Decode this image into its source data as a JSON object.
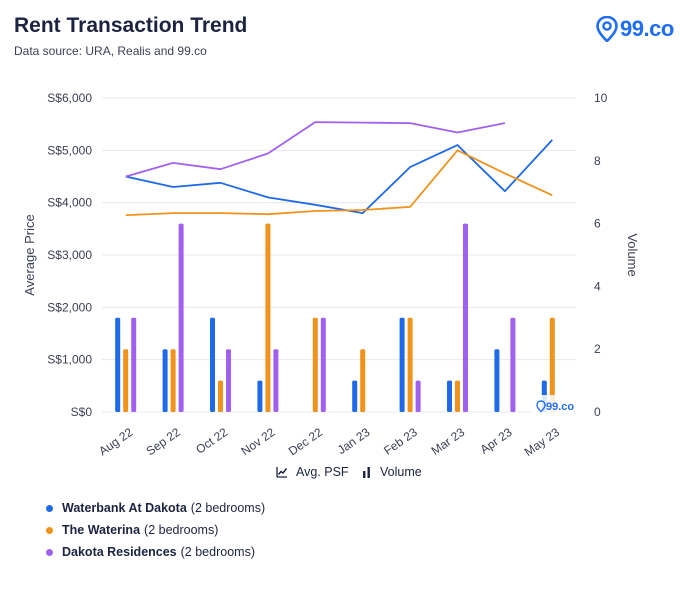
{
  "header": {
    "title": "Rent Transaction Trend",
    "subtitle": "Data source: URA, Realis and 99.co",
    "brand": "99.co"
  },
  "watermark": "99.co",
  "controls": {
    "avg_psf": "Avg. PSF",
    "volume": "Volume"
  },
  "legend": [
    {
      "name": "Waterbank At Dakota",
      "detail": "(2 bedrooms)",
      "color": "#1f6ae8"
    },
    {
      "name": "The Waterina",
      "detail": "(2 bedrooms)",
      "color": "#f0931c"
    },
    {
      "name": "Dakota Residences",
      "detail": "(2 bedrooms)",
      "color": "#a161ee"
    }
  ],
  "chart_data": {
    "type": "bar+line",
    "categories": [
      "Aug 22",
      "Sep 22",
      "Oct 22",
      "Nov 22",
      "Dec 22",
      "Jan 23",
      "Feb 23",
      "Mar 23",
      "Apr 23",
      "May 23"
    ],
    "ylabel": "Average Price",
    "y2label": "Volume",
    "ylim": [
      0,
      6000
    ],
    "y2lim": [
      0,
      10
    ],
    "yticks": [
      "S$0",
      "S$1,000",
      "S$2,000",
      "S$3,000",
      "S$4,000",
      "S$5,000",
      "S$6,000"
    ],
    "y2ticks": [
      "0",
      "2",
      "4",
      "6",
      "8",
      "10"
    ],
    "line_series": [
      {
        "name": "Waterbank At Dakota",
        "color": "#1f6ae8",
        "values": [
          4500,
          4300,
          4380,
          4100,
          3960,
          3800,
          4680,
          5100,
          4220,
          5200
        ]
      },
      {
        "name": "The Waterina",
        "color": "#f0931c",
        "values": [
          3760,
          3800,
          3800,
          3780,
          3840,
          3860,
          3920,
          5000,
          4560,
          4140
        ]
      },
      {
        "name": "Dakota Residences",
        "color": "#a161ee",
        "values": [
          4500,
          4760,
          4640,
          4940,
          5540,
          5530,
          5520,
          5340,
          5520,
          null
        ]
      }
    ],
    "bar_series": [
      {
        "name": "Waterbank At Dakota",
        "color": "#1f6ae8",
        "values": [
          3,
          2,
          3,
          1,
          0,
          1,
          3,
          1,
          2,
          1
        ]
      },
      {
        "name": "The Waterina",
        "color": "#f0931c",
        "values": [
          2,
          2,
          1,
          6,
          3,
          2,
          3,
          1,
          0,
          3
        ]
      },
      {
        "name": "Dakota Residences",
        "color": "#a161ee",
        "values": [
          3,
          6,
          2,
          2,
          3,
          0,
          1,
          6,
          3,
          0
        ]
      }
    ]
  }
}
